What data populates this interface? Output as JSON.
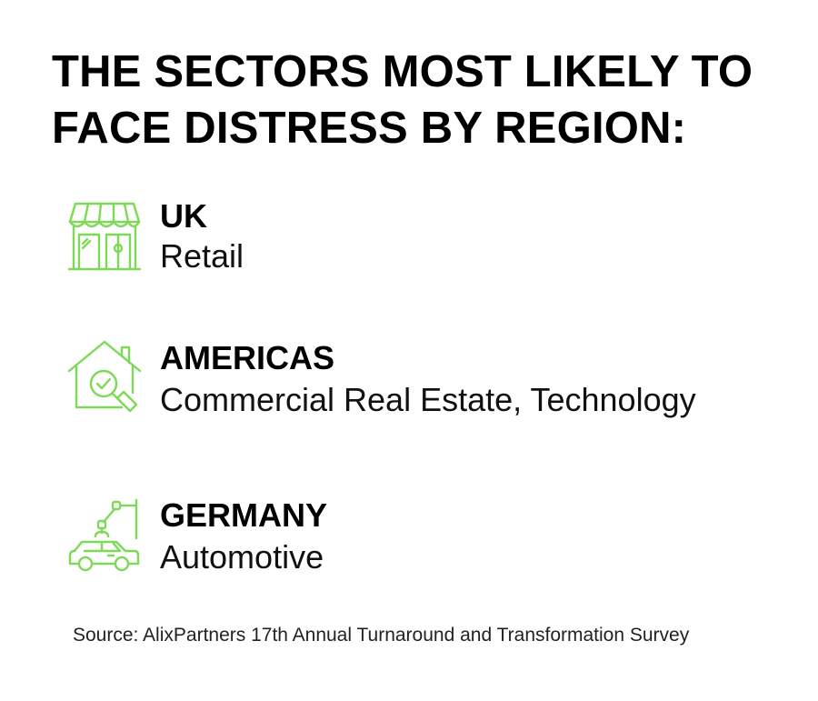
{
  "title": {
    "line1": "THE SECTORS MOST LIKELY TO",
    "line2": "FACE DISTRESS BY REGION:"
  },
  "accent_color": "#7ED957",
  "regions": [
    {
      "name": "UK",
      "sector": "Retail",
      "icon": "storefront-icon"
    },
    {
      "name": "AMERICAS",
      "sector": "Commercial Real Estate, Technology",
      "icon": "house-magnifier-icon"
    },
    {
      "name": "GERMANY",
      "sector": "Automotive",
      "icon": "car-robot-arm-icon"
    }
  ],
  "source": "Source: AlixPartners 17th Annual Turnaround and Transformation Survey"
}
